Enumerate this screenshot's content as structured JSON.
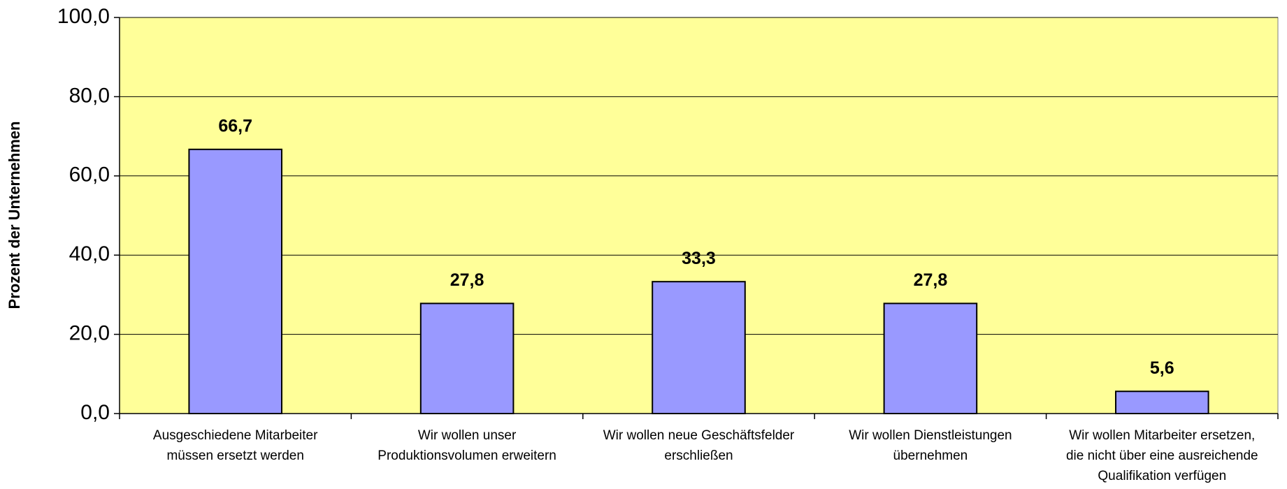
{
  "chart_data": {
    "type": "bar",
    "y_label": "Prozent der Unternehmen",
    "categories": [
      [
        "Ausgeschiedene Mitarbeiter",
        "müssen ersetzt werden"
      ],
      [
        "Wir wollen unser",
        "Produktionsvolumen erweitern"
      ],
      [
        "Wir wollen neue Geschäftsfelder",
        "erschließen"
      ],
      [
        "Wir wollen Dienstleistungen",
        "übernehmen"
      ],
      [
        "Wir wollen Mitarbeiter ersetzen,",
        "die nicht über eine ausreichende",
        "Qualifikation verfügen"
      ]
    ],
    "values": [
      66.7,
      27.8,
      33.3,
      27.8,
      5.6
    ],
    "value_labels": [
      "66,7",
      "27,8",
      "33,3",
      "27,8",
      "5,6"
    ],
    "color": "#9999ff",
    "background": "#ffff99",
    "ylim": [
      0,
      100
    ],
    "yticks": [
      {
        "value": 0,
        "label": "0,0"
      },
      {
        "value": 20,
        "label": "20,0"
      },
      {
        "value": 40,
        "label": "40,0"
      },
      {
        "value": 60,
        "label": "60,0"
      },
      {
        "value": 80,
        "label": "80,0"
      },
      {
        "value": 100,
        "label": "100,0"
      }
    ],
    "grid": true
  }
}
